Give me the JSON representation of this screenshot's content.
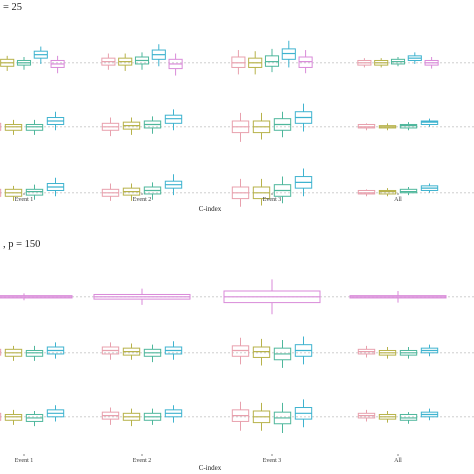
{
  "chart_data": [
    {
      "type": "boxplot",
      "title": "= 25",
      "xlabel": "C-index",
      "categories": [
        "Event 1",
        "Event 2",
        "Event 3",
        "All"
      ],
      "series_colors": [
        "#e8a0ad",
        "#b7b24a",
        "#4fb79c",
        "#3fb3cf",
        "#d98ad9"
      ],
      "rows": [
        {
          "reference": 0.5,
          "groups": [
            [
              [
                0.43,
                0.48,
                0.5,
                0.53,
                0.57
              ],
              [
                0.43,
                0.47,
                0.5,
                0.53,
                0.56
              ],
              [
                0.44,
                0.48,
                0.5,
                0.52,
                0.55
              ],
              [
                0.49,
                0.54,
                0.57,
                0.6,
                0.64
              ],
              [
                0.41,
                0.46,
                0.49,
                0.52,
                0.56
              ]
            ],
            [
              [
                0.44,
                0.48,
                0.51,
                0.54,
                0.58
              ],
              [
                0.43,
                0.48,
                0.51,
                0.54,
                0.58
              ],
              [
                0.44,
                0.49,
                0.52,
                0.55,
                0.59
              ],
              [
                0.47,
                0.53,
                0.57,
                0.61,
                0.66
              ],
              [
                0.39,
                0.45,
                0.49,
                0.53,
                0.58
              ]
            ],
            [
              [
                0.4,
                0.46,
                0.5,
                0.55,
                0.61
              ],
              [
                0.4,
                0.46,
                0.5,
                0.54,
                0.6
              ],
              [
                0.42,
                0.47,
                0.51,
                0.56,
                0.62
              ],
              [
                0.46,
                0.53,
                0.58,
                0.62,
                0.69
              ],
              [
                0.41,
                0.46,
                0.51,
                0.55,
                0.61
              ]
            ],
            [
              [
                0.46,
                0.48,
                0.5,
                0.52,
                0.54
              ],
              [
                0.46,
                0.48,
                0.5,
                0.52,
                0.54
              ],
              [
                0.47,
                0.49,
                0.51,
                0.53,
                0.55
              ],
              [
                0.49,
                0.52,
                0.54,
                0.56,
                0.59
              ],
              [
                0.45,
                0.48,
                0.5,
                0.52,
                0.55
              ]
            ]
          ]
        },
        {
          "reference": 0.5,
          "groups": [
            [
              [
                0.43,
                0.47,
                0.5,
                0.53,
                0.57
              ],
              [
                0.43,
                0.47,
                0.5,
                0.52,
                0.56
              ],
              [
                0.43,
                0.47,
                0.5,
                0.52,
                0.56
              ],
              [
                0.47,
                0.52,
                0.55,
                0.58,
                0.63
              ]
            ],
            [
              [
                0.42,
                0.47,
                0.5,
                0.53,
                0.58
              ],
              [
                0.43,
                0.48,
                0.51,
                0.54,
                0.58
              ],
              [
                0.44,
                0.49,
                0.52,
                0.55,
                0.59
              ],
              [
                0.47,
                0.53,
                0.57,
                0.6,
                0.65
              ]
            ],
            [
              [
                0.37,
                0.45,
                0.5,
                0.55,
                0.62
              ],
              [
                0.39,
                0.45,
                0.5,
                0.55,
                0.62
              ],
              [
                0.41,
                0.47,
                0.52,
                0.57,
                0.63
              ],
              [
                0.46,
                0.53,
                0.58,
                0.63,
                0.7
              ]
            ],
            [
              [
                0.47,
                0.49,
                0.5,
                0.52,
                0.53
              ],
              [
                0.47,
                0.49,
                0.5,
                0.51,
                0.53
              ],
              [
                0.47,
                0.49,
                0.51,
                0.52,
                0.54
              ],
              [
                0.5,
                0.52,
                0.54,
                0.55,
                0.57
              ]
            ]
          ]
        },
        {
          "reference": 0.5,
          "groups": [
            [
              [
                0.43,
                0.47,
                0.5,
                0.53,
                0.57
              ],
              [
                0.43,
                0.47,
                0.5,
                0.53,
                0.56
              ],
              [
                0.44,
                0.48,
                0.51,
                0.53,
                0.57
              ],
              [
                0.47,
                0.52,
                0.55,
                0.58,
                0.63
              ]
            ],
            [
              [
                0.43,
                0.47,
                0.5,
                0.53,
                0.58
              ],
              [
                0.43,
                0.48,
                0.51,
                0.54,
                0.58
              ],
              [
                0.44,
                0.49,
                0.52,
                0.55,
                0.59
              ],
              [
                0.48,
                0.54,
                0.57,
                0.6,
                0.66
              ]
            ],
            [
              [
                0.38,
                0.45,
                0.5,
                0.55,
                0.62
              ],
              [
                0.39,
                0.45,
                0.5,
                0.55,
                0.62
              ],
              [
                0.41,
                0.47,
                0.52,
                0.57,
                0.64
              ],
              [
                0.47,
                0.54,
                0.59,
                0.64,
                0.71
              ]
            ],
            [
              [
                0.47,
                0.49,
                0.5,
                0.52,
                0.53
              ],
              [
                0.47,
                0.49,
                0.51,
                0.52,
                0.54
              ],
              [
                0.48,
                0.5,
                0.51,
                0.53,
                0.55
              ],
              [
                0.5,
                0.52,
                0.54,
                0.56,
                0.58
              ]
            ]
          ]
        }
      ]
    },
    {
      "type": "boxplot",
      "title": ", p = 150",
      "xlabel": "C-index",
      "categories": [
        "Event 1",
        "Event 2",
        "Event 3",
        "All"
      ],
      "series_colors": [
        "#e8a0ad",
        "#b7b24a",
        "#4fb79c",
        "#3fb3cf",
        "#d98ad9"
      ],
      "rows": [
        {
          "reference": 0.5,
          "groups": [
            [
              [
                0.47,
                0.49,
                0.5,
                0.51,
                0.53
              ]
            ],
            [
              [
                0.43,
                0.48,
                0.5,
                0.52,
                0.57
              ]
            ],
            [
              [
                0.35,
                0.45,
                0.5,
                0.55,
                0.65
              ]
            ],
            [
              [
                0.45,
                0.49,
                0.5,
                0.51,
                0.55
              ]
            ]
          ]
        },
        {
          "reference": 0.5,
          "groups": [
            [
              [
                0.44,
                0.48,
                0.51,
                0.53,
                0.57
              ],
              [
                0.43,
                0.47,
                0.5,
                0.53,
                0.56
              ],
              [
                0.43,
                0.47,
                0.5,
                0.52,
                0.56
              ],
              [
                0.45,
                0.49,
                0.52,
                0.55,
                0.59
              ]
            ],
            [
              [
                0.44,
                0.49,
                0.52,
                0.55,
                0.59
              ],
              [
                0.44,
                0.48,
                0.51,
                0.54,
                0.58
              ],
              [
                0.42,
                0.47,
                0.5,
                0.53,
                0.57
              ],
              [
                0.44,
                0.49,
                0.52,
                0.55,
                0.6
              ]
            ],
            [
              [
                0.4,
                0.47,
                0.52,
                0.56,
                0.63
              ],
              [
                0.39,
                0.46,
                0.51,
                0.55,
                0.62
              ],
              [
                0.37,
                0.44,
                0.49,
                0.54,
                0.61
              ],
              [
                0.4,
                0.47,
                0.52,
                0.57,
                0.64
              ]
            ],
            [
              [
                0.46,
                0.49,
                0.51,
                0.53,
                0.56
              ],
              [
                0.45,
                0.48,
                0.5,
                0.52,
                0.55
              ],
              [
                0.45,
                0.48,
                0.5,
                0.52,
                0.55
              ],
              [
                0.47,
                0.5,
                0.52,
                0.54,
                0.57
              ]
            ]
          ]
        },
        {
          "reference": 0.5,
          "groups": [
            [
              [
                0.43,
                0.47,
                0.5,
                0.53,
                0.57
              ],
              [
                0.43,
                0.47,
                0.5,
                0.52,
                0.56
              ],
              [
                0.42,
                0.46,
                0.49,
                0.52,
                0.55
              ],
              [
                0.46,
                0.5,
                0.53,
                0.56,
                0.6
              ]
            ],
            [
              [
                0.43,
                0.48,
                0.51,
                0.54,
                0.58
              ],
              [
                0.42,
                0.47,
                0.5,
                0.53,
                0.57
              ],
              [
                0.43,
                0.47,
                0.5,
                0.53,
                0.57
              ],
              [
                0.45,
                0.5,
                0.53,
                0.56,
                0.6
              ]
            ],
            [
              [
                0.38,
                0.46,
                0.51,
                0.56,
                0.63
              ],
              [
                0.38,
                0.45,
                0.5,
                0.55,
                0.62
              ],
              [
                0.36,
                0.44,
                0.49,
                0.54,
                0.62
              ],
              [
                0.41,
                0.48,
                0.53,
                0.58,
                0.65
              ]
            ],
            [
              [
                0.46,
                0.49,
                0.51,
                0.53,
                0.56
              ],
              [
                0.45,
                0.48,
                0.5,
                0.52,
                0.55
              ],
              [
                0.44,
                0.47,
                0.49,
                0.52,
                0.54
              ],
              [
                0.47,
                0.5,
                0.52,
                0.54,
                0.57
              ]
            ]
          ]
        }
      ]
    }
  ]
}
